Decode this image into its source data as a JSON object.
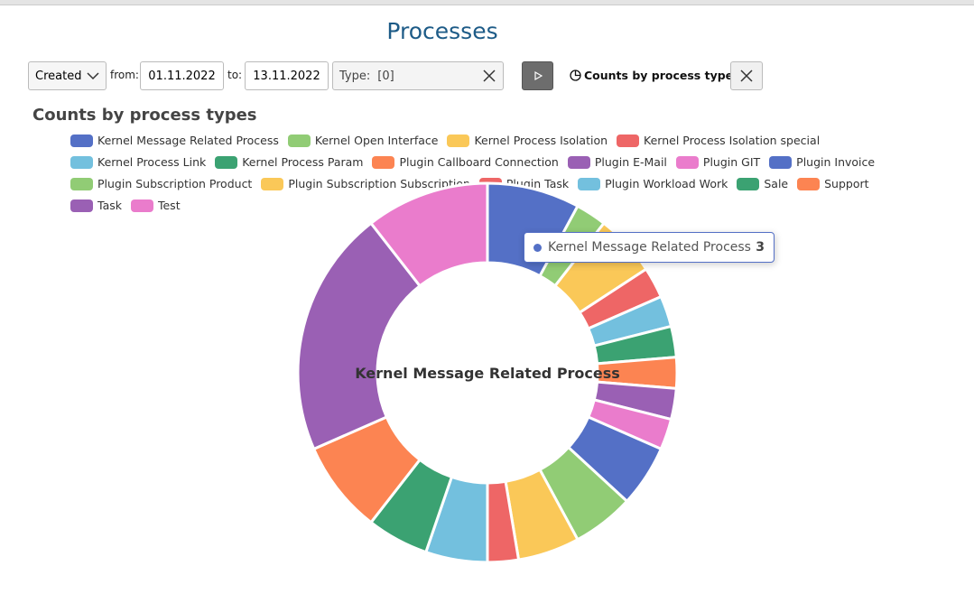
{
  "header": {
    "title": "Processes"
  },
  "filters": {
    "date_field": "Created",
    "from_label": "from:",
    "from": "01.11.2022",
    "to_label": "to:",
    "to": "13.11.2022",
    "type_label": "Type:",
    "type_value": "[0]",
    "view": "Counts by process types"
  },
  "chart_data": {
    "type": "pie",
    "title": "Counts by process types",
    "categories": [
      "Kernel Message Related Process",
      "Kernel Open Interface",
      "Kernel Process Isolation",
      "Kernel Process Isolation special",
      "Kernel Process Link",
      "Kernel Process Param",
      "Plugin Callboard Connection",
      "Plugin E-Mail",
      "Plugin GIT",
      "Plugin Invoice",
      "Plugin Subscription Product",
      "Plugin Subscription Subscription",
      "Plugin Task",
      "Plugin Workload Work",
      "Sale",
      "Support",
      "Task",
      "Test"
    ],
    "values": [
      3,
      1,
      2,
      1,
      1,
      1,
      1,
      1,
      1,
      2,
      2,
      2,
      1,
      2,
      2,
      3,
      8,
      4
    ],
    "colors": [
      "#5470c6",
      "#91cc75",
      "#fac858",
      "#ee6666",
      "#73c0de",
      "#3ba272",
      "#fc8452",
      "#9a60b4",
      "#ea7ccc",
      "#5470c6",
      "#91cc75",
      "#fac858",
      "#ee6666",
      "#73c0de",
      "#3ba272",
      "#fc8452",
      "#9a60b4",
      "#ea7ccc"
    ],
    "highlighted": 0
  }
}
